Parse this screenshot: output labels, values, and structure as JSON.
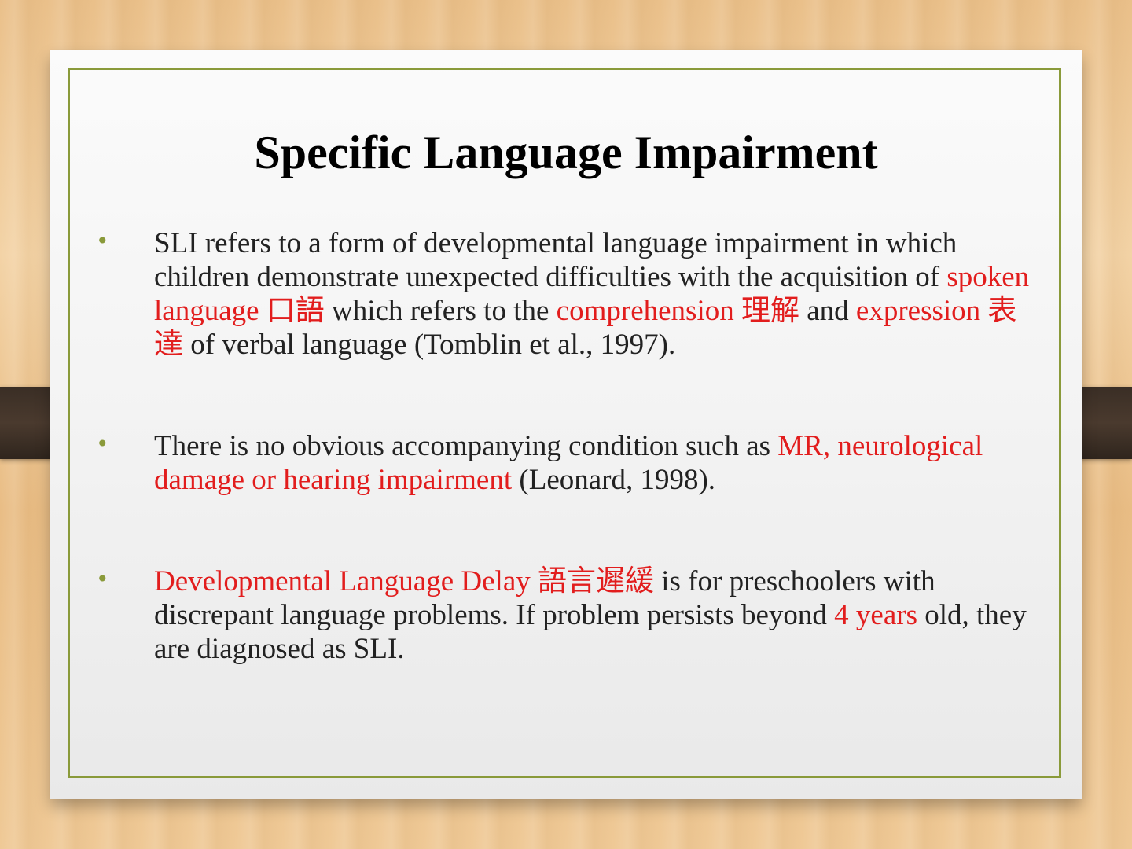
{
  "slide": {
    "title": "Specific Language Impairment",
    "bullet_symbol": "•",
    "bullets": [
      {
        "segments": [
          {
            "text": "SLI refers to a form of developmental language impairment in which children demonstrate unexpected difficulties with the acquisition of ",
            "highlight": false
          },
          {
            "text": "spoken language 口語",
            "highlight": true
          },
          {
            "text": " which refers to the ",
            "highlight": false
          },
          {
            "text": "comprehension 理解",
            "highlight": true
          },
          {
            "text": " and ",
            "highlight": false
          },
          {
            "text": "expression 表達",
            "highlight": true
          },
          {
            "text": " of verbal language (Tomblin et al., 1997).",
            "highlight": false
          }
        ]
      },
      {
        "segments": [
          {
            "text": "There is no obvious accompanying condition such as ",
            "highlight": false
          },
          {
            "text": "MR, neurological damage or hearing impairment",
            "highlight": true
          },
          {
            "text": " (Leonard, 1998).",
            "highlight": false
          }
        ]
      },
      {
        "segments": [
          {
            "text": "Developmental Language Delay 語言遲緩",
            "highlight": true
          },
          {
            "text": " is for preschoolers with discrepant language problems. If problem persists beyond ",
            "highlight": false
          },
          {
            "text": "4 years",
            "highlight": true
          },
          {
            "text": " old, they are diagnosed as SLI.",
            "highlight": false
          }
        ]
      }
    ]
  },
  "colors": {
    "highlight": "#e21d1d",
    "body_text": "#222222",
    "frame": "#8a9a3a"
  }
}
